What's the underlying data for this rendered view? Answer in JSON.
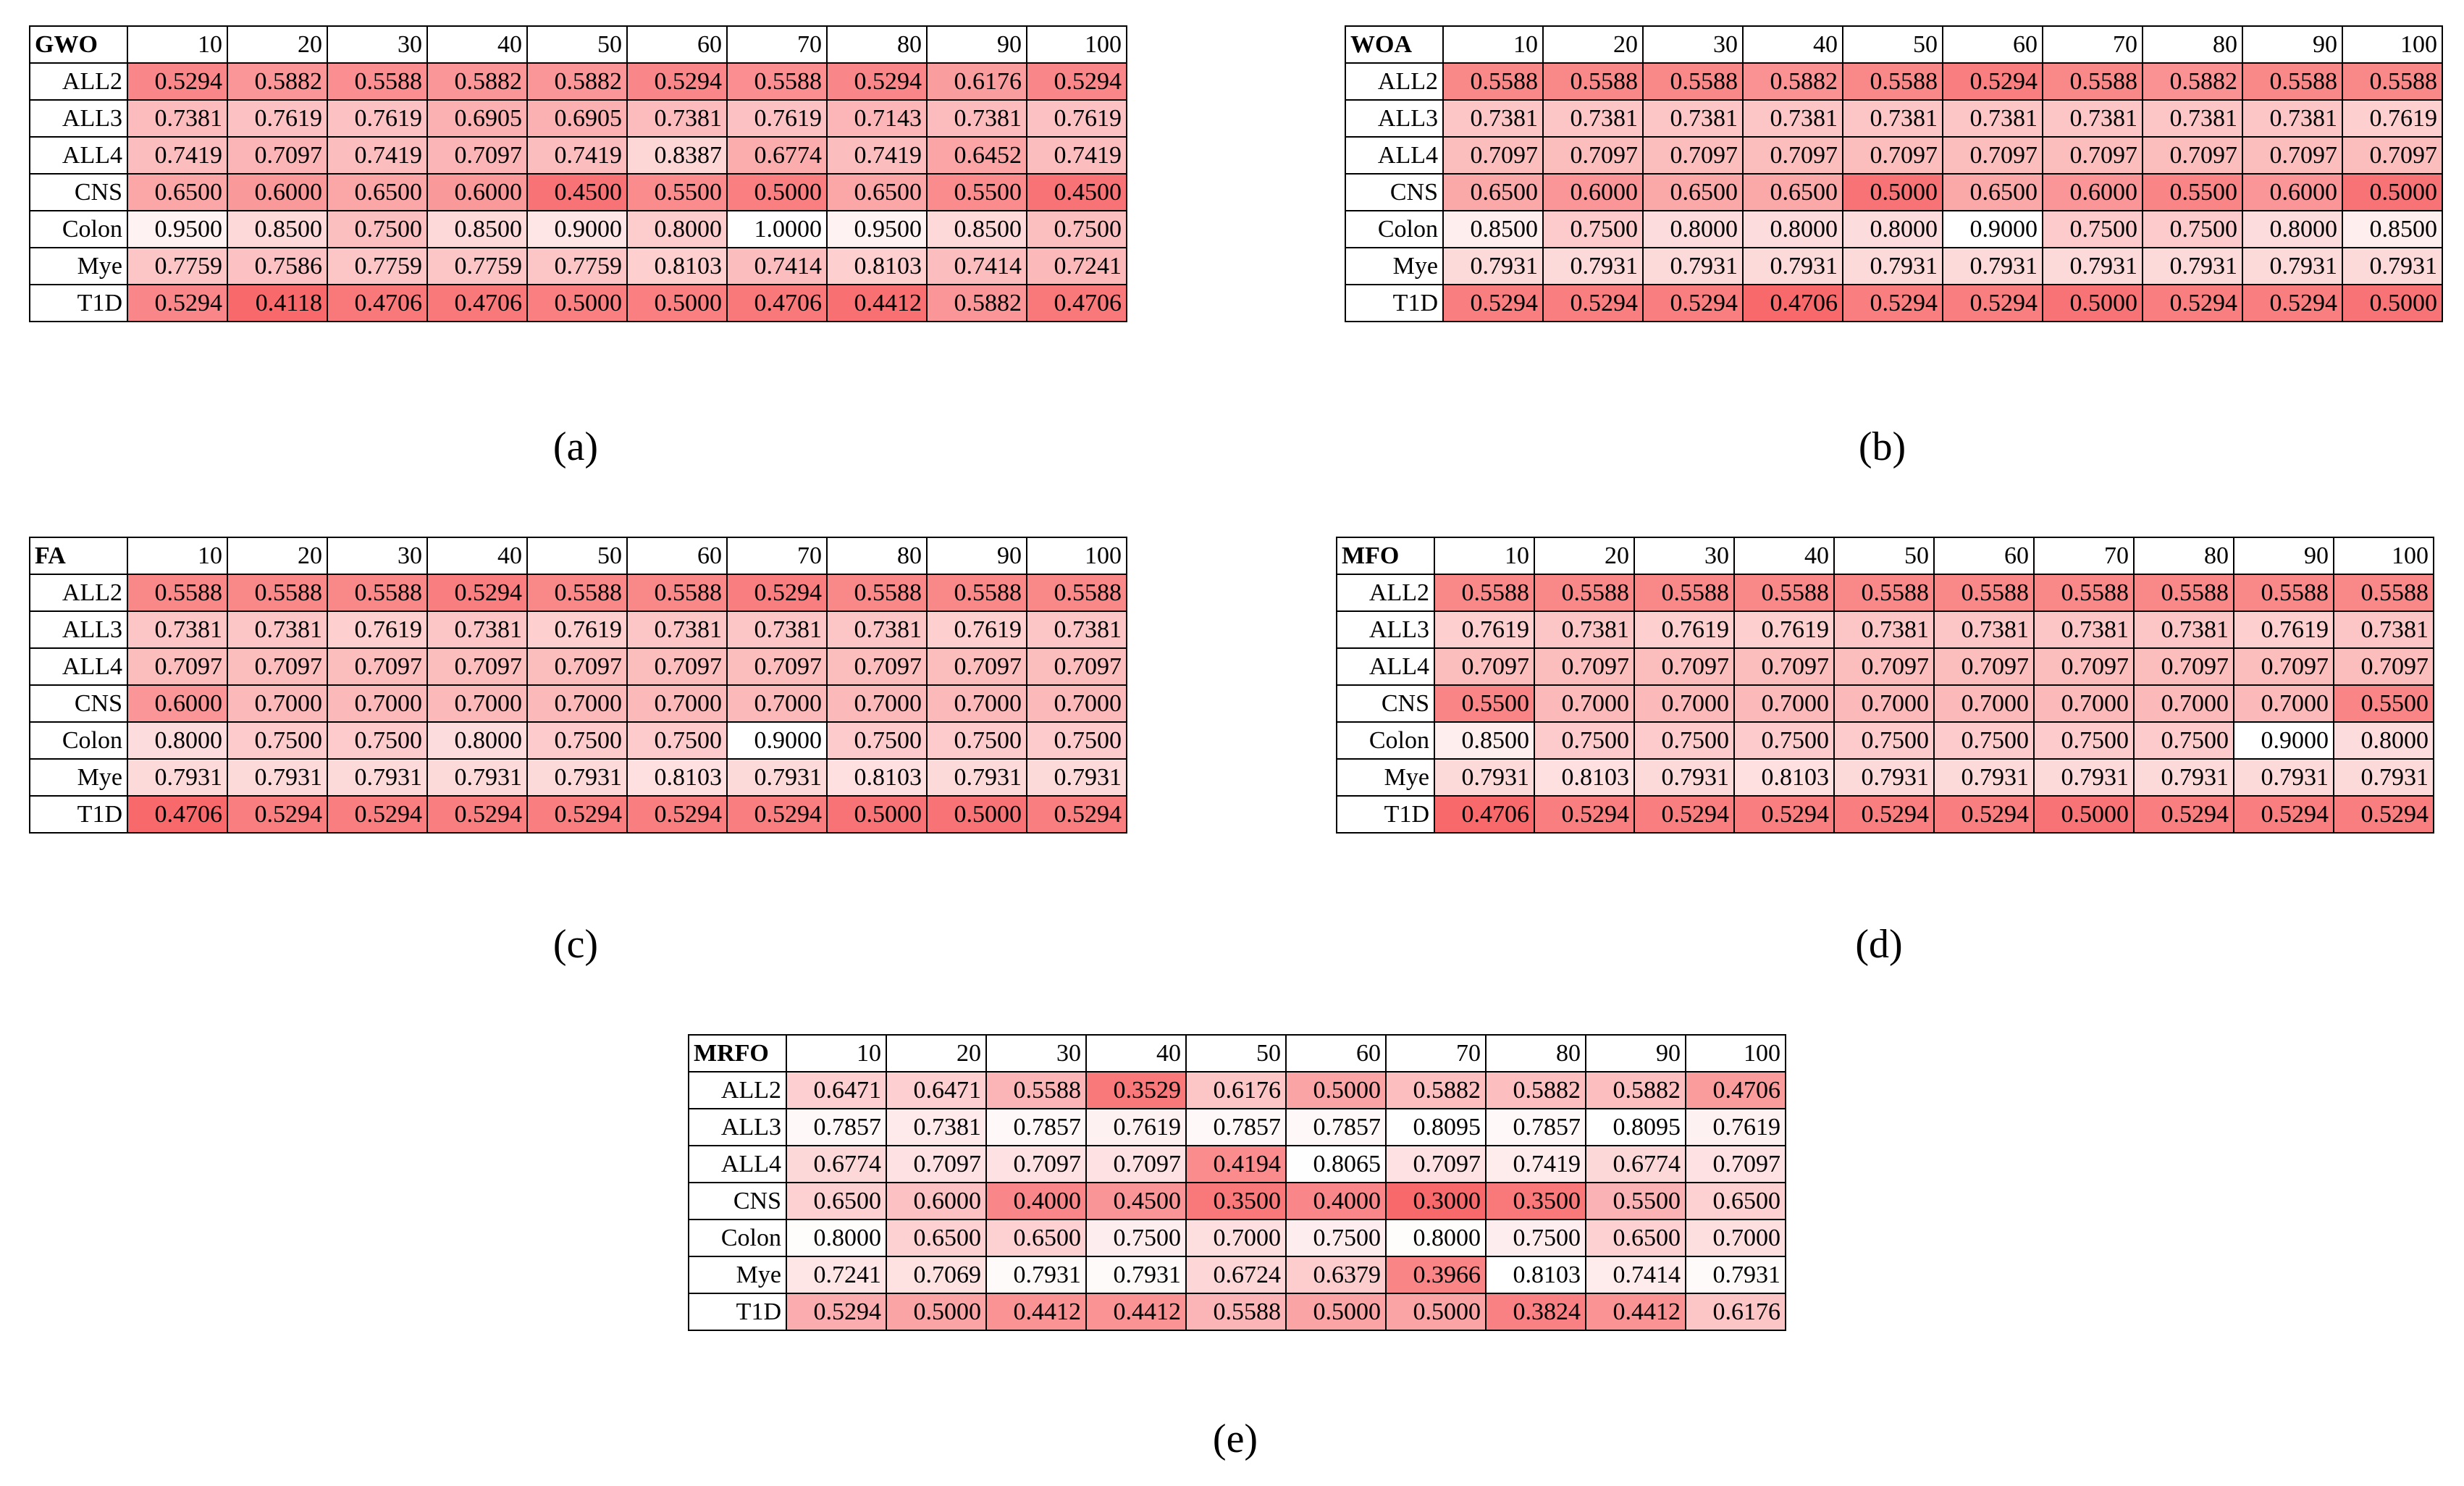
{
  "color_scale": {
    "low": "#f8696b",
    "high": "#ffffff"
  },
  "panels": [
    {
      "caption": "(a)",
      "corner": "GWO",
      "columns": [
        10,
        20,
        30,
        40,
        50,
        60,
        70,
        80,
        90,
        100
      ],
      "rows": [
        {
          "label": "ALL2",
          "cells": [
            "0.5294",
            "0.5882",
            "0.5588",
            "0.5882",
            "0.5882",
            "0.5294",
            "0.5588",
            "0.5294",
            "0.6176",
            "0.5294"
          ]
        },
        {
          "label": "ALL3",
          "cells": [
            "0.7381",
            "0.7619",
            "0.7619",
            "0.6905",
            "0.6905",
            "0.7381",
            "0.7619",
            "0.7143",
            "0.7381",
            "0.7619"
          ]
        },
        {
          "label": "ALL4",
          "cells": [
            "0.7419",
            "0.7097",
            "0.7419",
            "0.7097",
            "0.7419",
            "0.8387",
            "0.6774",
            "0.7419",
            "0.6452",
            "0.7419"
          ]
        },
        {
          "label": "CNS",
          "cells": [
            "0.6500",
            "0.6000",
            "0.6500",
            "0.6000",
            "0.4500",
            "0.5500",
            "0.5000",
            "0.6500",
            "0.5500",
            "0.4500"
          ]
        },
        {
          "label": "Colon",
          "cells": [
            "0.9500",
            "0.8500",
            "0.7500",
            "0.8500",
            "0.9000",
            "0.8000",
            "1.0000",
            "0.9500",
            "0.8500",
            "0.7500"
          ]
        },
        {
          "label": "Mye",
          "cells": [
            "0.7759",
            "0.7586",
            "0.7759",
            "0.7759",
            "0.7759",
            "0.8103",
            "0.7414",
            "0.8103",
            "0.7414",
            "0.7241"
          ]
        },
        {
          "label": "T1D",
          "cells": [
            "0.5294",
            "0.4118",
            "0.4706",
            "0.4706",
            "0.5000",
            "0.5000",
            "0.4706",
            "0.4412",
            "0.5882",
            "0.4706"
          ]
        }
      ]
    },
    {
      "caption": "(b)",
      "corner": "WOA",
      "columns": [
        10,
        20,
        30,
        40,
        50,
        60,
        70,
        80,
        90,
        100
      ],
      "rows": [
        {
          "label": "ALL2",
          "cells": [
            "0.5588",
            "0.5588",
            "0.5588",
            "0.5882",
            "0.5588",
            "0.5294",
            "0.5588",
            "0.5882",
            "0.5588",
            "0.5588"
          ]
        },
        {
          "label": "ALL3",
          "cells": [
            "0.7381",
            "0.7381",
            "0.7381",
            "0.7381",
            "0.7381",
            "0.7381",
            "0.7381",
            "0.7381",
            "0.7381",
            "0.7619"
          ]
        },
        {
          "label": "ALL4",
          "cells": [
            "0.7097",
            "0.7097",
            "0.7097",
            "0.7097",
            "0.7097",
            "0.7097",
            "0.7097",
            "0.7097",
            "0.7097",
            "0.7097"
          ]
        },
        {
          "label": "CNS",
          "cells": [
            "0.6500",
            "0.6000",
            "0.6500",
            "0.6500",
            "0.5000",
            "0.6500",
            "0.6000",
            "0.5500",
            "0.6000",
            "0.5000"
          ]
        },
        {
          "label": "Colon",
          "cells": [
            "0.8500",
            "0.7500",
            "0.8000",
            "0.8000",
            "0.8000",
            "0.9000",
            "0.7500",
            "0.7500",
            "0.8000",
            "0.8500"
          ]
        },
        {
          "label": "Mye",
          "cells": [
            "0.7931",
            "0.7931",
            "0.7931",
            "0.7931",
            "0.7931",
            "0.7931",
            "0.7931",
            "0.7931",
            "0.7931",
            "0.7931"
          ]
        },
        {
          "label": "T1D",
          "cells": [
            "0.5294",
            "0.5294",
            "0.5294",
            "0.4706",
            "0.5294",
            "0.5294",
            "0.5000",
            "0.5294",
            "0.5294",
            "0.5000"
          ]
        }
      ]
    },
    {
      "caption": "(c)",
      "corner": "FA",
      "columns": [
        10,
        20,
        30,
        40,
        50,
        60,
        70,
        80,
        90,
        100
      ],
      "rows": [
        {
          "label": "ALL2",
          "cells": [
            "0.5588",
            "0.5588",
            "0.5588",
            "0.5294",
            "0.5588",
            "0.5588",
            "0.5294",
            "0.5588",
            "0.5588",
            "0.5588"
          ]
        },
        {
          "label": "ALL3",
          "cells": [
            "0.7381",
            "0.7381",
            "0.7619",
            "0.7381",
            "0.7619",
            "0.7381",
            "0.7381",
            "0.7381",
            "0.7619",
            "0.7381"
          ]
        },
        {
          "label": "ALL4",
          "cells": [
            "0.7097",
            "0.7097",
            "0.7097",
            "0.7097",
            "0.7097",
            "0.7097",
            "0.7097",
            "0.7097",
            "0.7097",
            "0.7097"
          ]
        },
        {
          "label": "CNS",
          "cells": [
            "0.6000",
            "0.7000",
            "0.7000",
            "0.7000",
            "0.7000",
            "0.7000",
            "0.7000",
            "0.7000",
            "0.7000",
            "0.7000"
          ]
        },
        {
          "label": "Colon",
          "cells": [
            "0.8000",
            "0.7500",
            "0.7500",
            "0.8000",
            "0.7500",
            "0.7500",
            "0.9000",
            "0.7500",
            "0.7500",
            "0.7500"
          ]
        },
        {
          "label": "Mye",
          "cells": [
            "0.7931",
            "0.7931",
            "0.7931",
            "0.7931",
            "0.7931",
            "0.8103",
            "0.7931",
            "0.8103",
            "0.7931",
            "0.7931"
          ]
        },
        {
          "label": "T1D",
          "cells": [
            "0.4706",
            "0.5294",
            "0.5294",
            "0.5294",
            "0.5294",
            "0.5294",
            "0.5294",
            "0.5000",
            "0.5000",
            "0.5294"
          ]
        }
      ]
    },
    {
      "caption": "(d)",
      "corner": "MFO",
      "columns": [
        10,
        20,
        30,
        40,
        50,
        60,
        70,
        80,
        90,
        100
      ],
      "rows": [
        {
          "label": "ALL2",
          "cells": [
            "0.5588",
            "0.5588",
            "0.5588",
            "0.5588",
            "0.5588",
            "0.5588",
            "0.5588",
            "0.5588",
            "0.5588",
            "0.5588"
          ]
        },
        {
          "label": "ALL3",
          "cells": [
            "0.7619",
            "0.7381",
            "0.7619",
            "0.7619",
            "0.7381",
            "0.7381",
            "0.7381",
            "0.7381",
            "0.7619",
            "0.7381"
          ]
        },
        {
          "label": "ALL4",
          "cells": [
            "0.7097",
            "0.7097",
            "0.7097",
            "0.7097",
            "0.7097",
            "0.7097",
            "0.7097",
            "0.7097",
            "0.7097",
            "0.7097"
          ]
        },
        {
          "label": "CNS",
          "cells": [
            "0.5500",
            "0.7000",
            "0.7000",
            "0.7000",
            "0.7000",
            "0.7000",
            "0.7000",
            "0.7000",
            "0.7000",
            "0.5500"
          ]
        },
        {
          "label": "Colon",
          "cells": [
            "0.8500",
            "0.7500",
            "0.7500",
            "0.7500",
            "0.7500",
            "0.7500",
            "0.7500",
            "0.7500",
            "0.9000",
            "0.8000"
          ]
        },
        {
          "label": "Mye",
          "cells": [
            "0.7931",
            "0.8103",
            "0.7931",
            "0.8103",
            "0.7931",
            "0.7931",
            "0.7931",
            "0.7931",
            "0.7931",
            "0.7931"
          ]
        },
        {
          "label": "T1D",
          "cells": [
            "0.4706",
            "0.5294",
            "0.5294",
            "0.5294",
            "0.5294",
            "0.5294",
            "0.5000",
            "0.5294",
            "0.5294",
            "0.5294"
          ]
        }
      ]
    },
    {
      "caption": "(e)",
      "corner": "MRFO",
      "columns": [
        10,
        20,
        30,
        40,
        50,
        60,
        70,
        80,
        90,
        100
      ],
      "rows": [
        {
          "label": "ALL2",
          "cells": [
            "0.6471",
            "0.6471",
            "0.5588",
            "0.3529",
            "0.6176",
            "0.5000",
            "0.5882",
            "0.5882",
            "0.5882",
            "0.4706"
          ]
        },
        {
          "label": "ALL3",
          "cells": [
            "0.7857",
            "0.7381",
            "0.7857",
            "0.7619",
            "0.7857",
            "0.7857",
            "0.8095",
            "0.7857",
            "0.8095",
            "0.7619"
          ]
        },
        {
          "label": "ALL4",
          "cells": [
            "0.6774",
            "0.7097",
            "0.7097",
            "0.7097",
            "0.4194",
            "0.8065",
            "0.7097",
            "0.7419",
            "0.6774",
            "0.7097"
          ]
        },
        {
          "label": "CNS",
          "cells": [
            "0.6500",
            "0.6000",
            "0.4000",
            "0.4500",
            "0.3500",
            "0.4000",
            "0.3000",
            "0.3500",
            "0.5500",
            "0.6500"
          ]
        },
        {
          "label": "Colon",
          "cells": [
            "0.8000",
            "0.6500",
            "0.6500",
            "0.7500",
            "0.7000",
            "0.7500",
            "0.8000",
            "0.7500",
            "0.6500",
            "0.7000"
          ]
        },
        {
          "label": "Mye",
          "cells": [
            "0.7241",
            "0.7069",
            "0.7931",
            "0.7931",
            "0.6724",
            "0.6379",
            "0.3966",
            "0.8103",
            "0.7414",
            "0.7931"
          ]
        },
        {
          "label": "T1D",
          "cells": [
            "0.5294",
            "0.5000",
            "0.4412",
            "0.4412",
            "0.5588",
            "0.5000",
            "0.5000",
            "0.3824",
            "0.4412",
            "0.6176"
          ]
        }
      ]
    }
  ]
}
